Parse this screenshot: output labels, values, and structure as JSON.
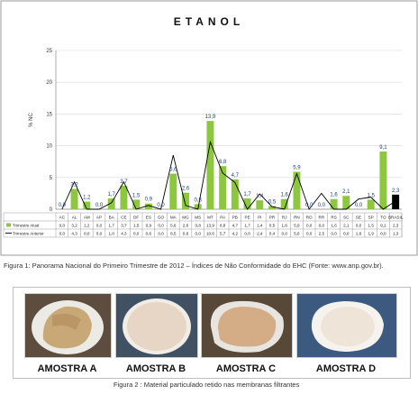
{
  "chart_data": {
    "type": "bar",
    "title": "ETANOL",
    "ylabel": "% NC",
    "ylim": [
      0,
      25
    ],
    "yticks": [
      0,
      5,
      10,
      15,
      20,
      25
    ],
    "grid": true,
    "legend_position": "bottom-left (inside data table)",
    "categories": [
      "AC",
      "AL",
      "AM",
      "AP",
      "BA",
      "CE",
      "DF",
      "ES",
      "GO",
      "MA",
      "MG",
      "MS",
      "MT",
      "PA",
      "PB",
      "PE",
      "PI",
      "PR",
      "RJ",
      "RN",
      "RO",
      "RR",
      "RS",
      "SC",
      "SE",
      "SP",
      "TO",
      "BRASIL"
    ],
    "series": [
      {
        "name": "Trimestre Atual",
        "type": "bar",
        "color": "#8dc63f",
        "values": [
          0.0,
          3.2,
          1.2,
          0.0,
          1.7,
          3.7,
          1.5,
          0.9,
          0.0,
          5.6,
          2.6,
          0.8,
          13.9,
          6.8,
          4.7,
          1.7,
          1.4,
          0.5,
          1.6,
          5.9,
          0.0,
          0.0,
          1.6,
          2.1,
          0.0,
          1.5,
          9.1,
          2.3
        ]
      },
      {
        "name": "Trimestre Anterior",
        "type": "line",
        "color": "#000000",
        "values": [
          0.0,
          4.3,
          0.0,
          0.0,
          1.0,
          4.3,
          0.0,
          0.6,
          0.0,
          8.5,
          0.6,
          0.0,
          10.6,
          5.7,
          4.2,
          0.0,
          2.4,
          0.4,
          0.0,
          5.6,
          0.0,
          2.5,
          0.0,
          0.0,
          1.6,
          1.9,
          0.0,
          1.3
        ]
      }
    ],
    "data_labels": [
      "0,0",
      "3,2",
      "1,2",
      "0,0",
      "1,7",
      "3,7",
      "1,5",
      "0,9",
      "0,0",
      "5,6",
      "2,6",
      "0,8",
      "13,9",
      "6,8",
      "4,7",
      "1,7",
      "1,4",
      "0,5",
      "1,6",
      "5,9",
      "0,0",
      "0,0",
      "1,6",
      "2,1",
      "0,0",
      "1,5",
      "9,1",
      "2,3"
    ],
    "table_row_current": [
      "0,0",
      "3,2",
      "1,2",
      "0,0",
      "1,7",
      "3,7",
      "1,5",
      "0,9",
      "0,0",
      "5,6",
      "2,6",
      "0,8",
      "13,9",
      "6,8",
      "4,7",
      "1,7",
      "1,4",
      "0,5",
      "1,6",
      "5,9",
      "0,0",
      "0,0",
      "1,6",
      "2,1",
      "0,0",
      "1,5",
      "9,1",
      "2,3"
    ],
    "table_row_previous": [
      "0,0",
      "4,3",
      "0,0",
      "0,0",
      "1,0",
      "4,3",
      "0,0",
      "0,6",
      "0,0",
      "8,5",
      "0,6",
      "0,0",
      "10,6",
      "5,7",
      "4,2",
      "0,0",
      "2,4",
      "0,4",
      "0,0",
      "5,6",
      "0,0",
      "2,5",
      "0,0",
      "0,0",
      "1,6",
      "1,9",
      "0,0",
      "1,3"
    ],
    "brasil_bar_color": "#000000"
  },
  "captions": {
    "figure1": "Figura 1: Panorama Nacional do Primeiro Trimestre de 2012 – Índices de Não Conformidade do EHC (Fonte: www.anp.gov.br).",
    "figure2": "Figura 2 :  Material particulado retido nas membranas filtrantes"
  },
  "photos": [
    {
      "label": "AMOSTRA A"
    },
    {
      "label": "AMOSTRA B"
    },
    {
      "label": "AMOSTRA C"
    },
    {
      "label": "AMOSTRA D"
    }
  ]
}
